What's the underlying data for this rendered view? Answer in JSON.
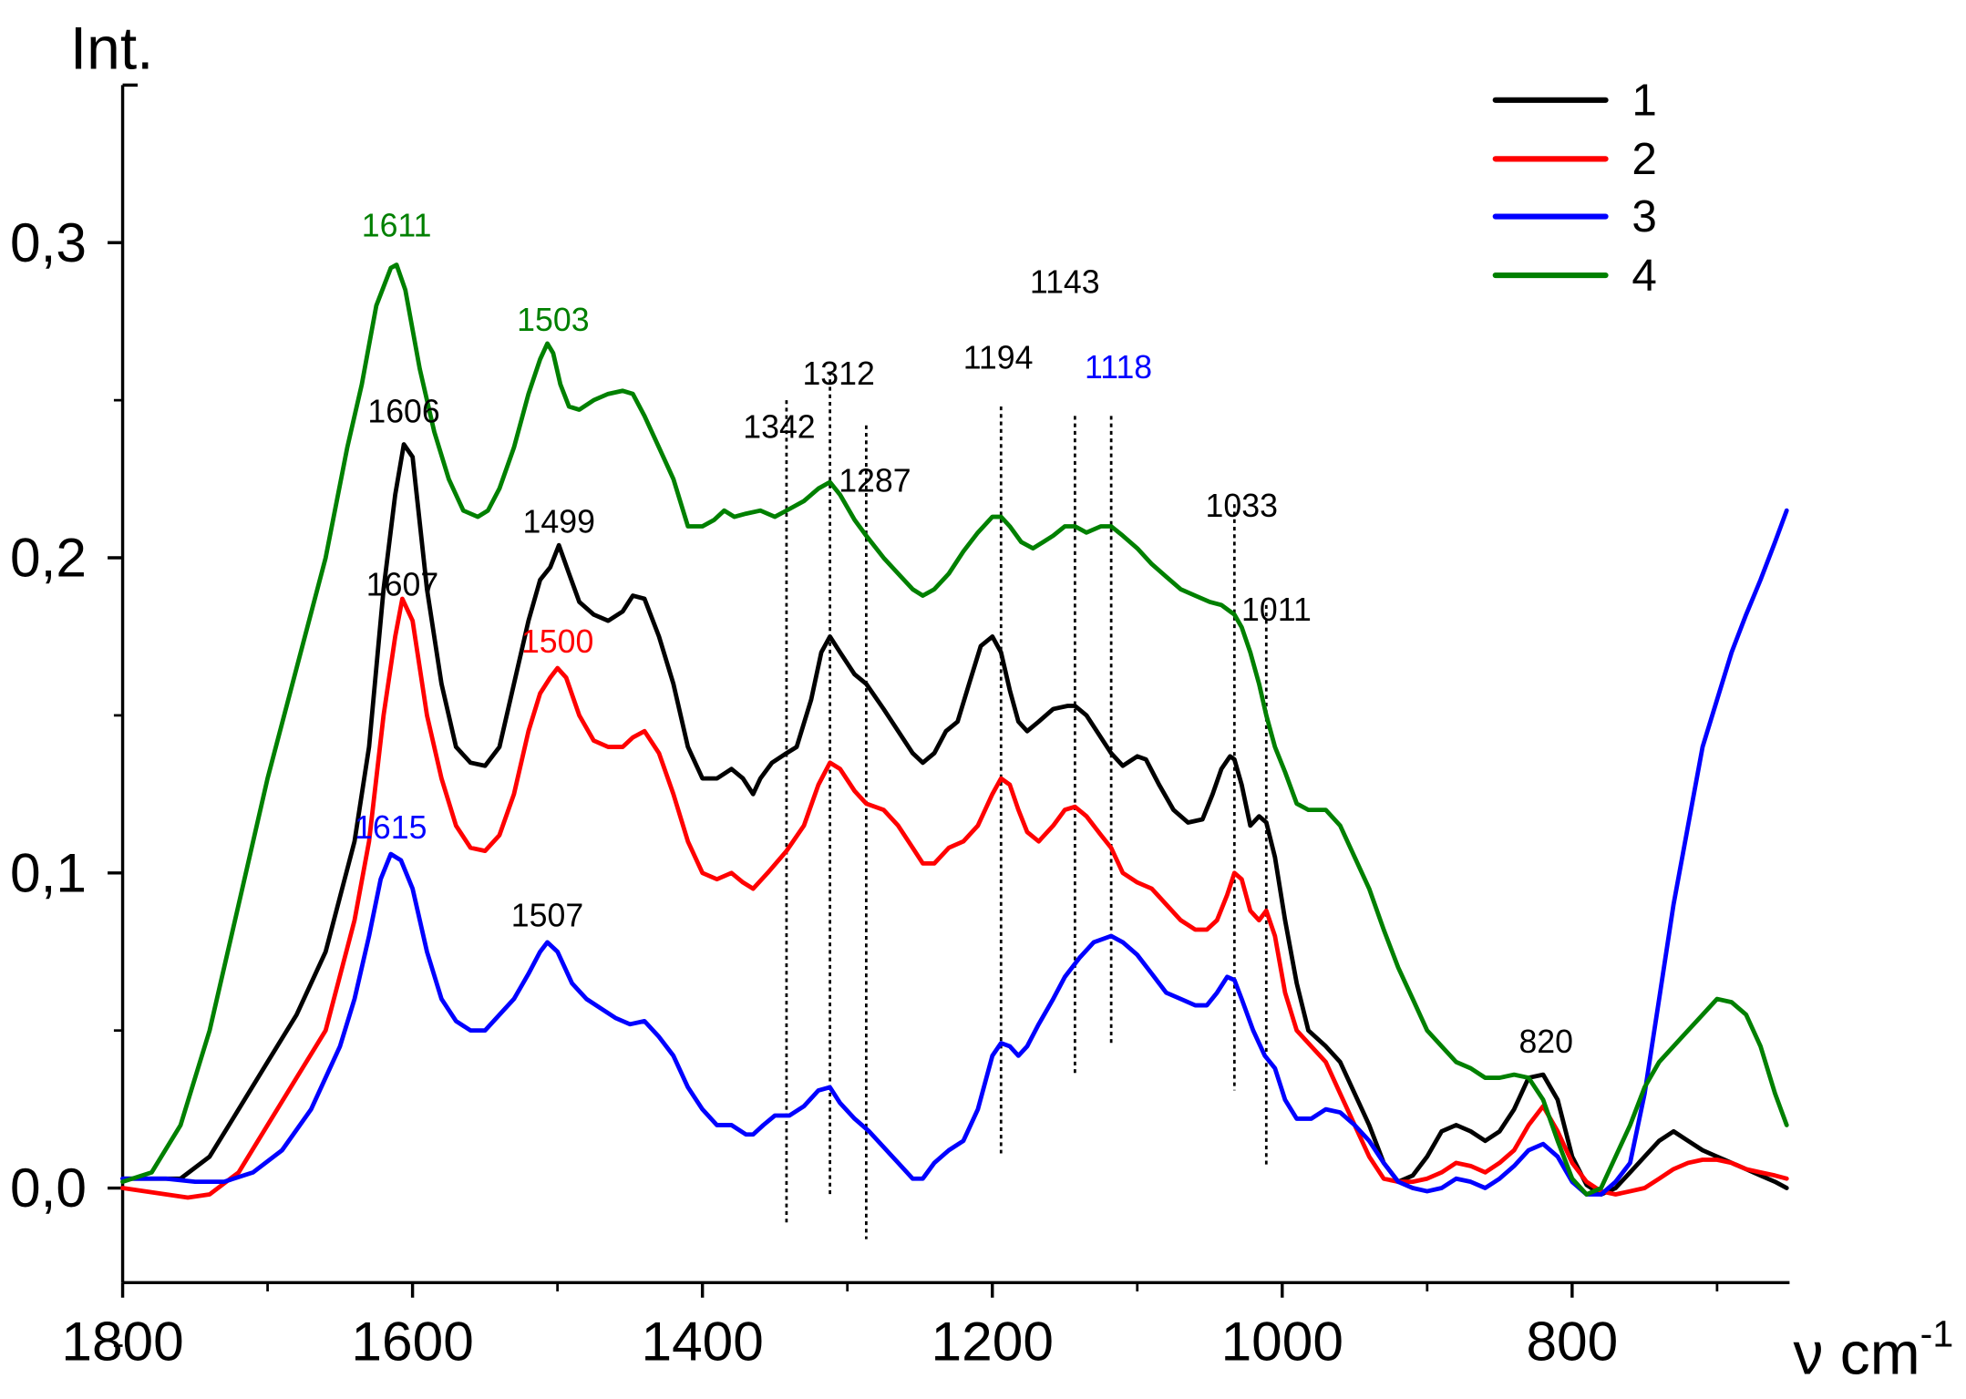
{
  "chart_data": {
    "type": "line",
    "title": "",
    "xlabel": "ν cm⁻¹",
    "xlabel_main": "ν cm",
    "xlabel_sup": "-1",
    "ylabel": "Int.",
    "xlim": [
      1800,
      650
    ],
    "ylim": [
      -0.03,
      0.35
    ],
    "x_reversed": true,
    "grid": false,
    "legend_position": "top-right",
    "x_ticks": [
      1800,
      1600,
      1400,
      1200,
      1000,
      800
    ],
    "x_tick_labels": [
      "1800",
      "1600",
      "1400",
      "1200",
      "1000",
      "800"
    ],
    "y_ticks": [
      0.0,
      0.1,
      0.2,
      0.3
    ],
    "y_tick_labels": [
      "0,0",
      "0,1",
      "0,2",
      "0,3"
    ],
    "y_minor_ticks": [
      -0.05,
      0.05,
      0.15,
      0.25
    ],
    "series": [
      {
        "name": "1",
        "color": "#000000",
        "x": [
          1800,
          1760,
          1740,
          1720,
          1700,
          1680,
          1660,
          1640,
          1630,
          1620,
          1612,
          1606,
          1600,
          1590,
          1580,
          1570,
          1560,
          1550,
          1540,
          1530,
          1520,
          1512,
          1505,
          1499,
          1492,
          1485,
          1475,
          1465,
          1455,
          1448,
          1440,
          1430,
          1420,
          1410,
          1400,
          1390,
          1380,
          1372,
          1365,
          1360,
          1352,
          1342,
          1335,
          1325,
          1318,
          1312,
          1305,
          1295,
          1287,
          1275,
          1265,
          1255,
          1248,
          1240,
          1232,
          1224,
          1216,
          1208,
          1200,
          1194,
          1188,
          1182,
          1176,
          1168,
          1158,
          1148,
          1143,
          1135,
          1128,
          1118,
          1110,
          1100,
          1094,
          1085,
          1075,
          1065,
          1055,
          1048,
          1042,
          1036,
          1033,
          1028,
          1022,
          1016,
          1011,
          1005,
          998,
          990,
          982,
          970,
          960,
          950,
          940,
          930,
          920,
          910,
          900,
          890,
          880,
          870,
          860,
          850,
          840,
          830,
          820,
          810,
          800,
          790,
          780,
          770,
          760,
          750,
          740,
          730,
          720,
          710,
          700,
          690,
          680,
          670,
          660,
          652
        ],
        "y": [
          0.003,
          0.003,
          0.01,
          0.025,
          0.04,
          0.055,
          0.075,
          0.11,
          0.14,
          0.19,
          0.22,
          0.236,
          0.232,
          0.19,
          0.16,
          0.14,
          0.135,
          0.134,
          0.14,
          0.16,
          0.18,
          0.193,
          0.197,
          0.204,
          0.195,
          0.186,
          0.182,
          0.18,
          0.183,
          0.188,
          0.187,
          0.175,
          0.16,
          0.14,
          0.13,
          0.13,
          0.133,
          0.13,
          0.125,
          0.13,
          0.135,
          0.138,
          0.14,
          0.155,
          0.17,
          0.175,
          0.17,
          0.163,
          0.16,
          0.152,
          0.145,
          0.138,
          0.135,
          0.138,
          0.145,
          0.148,
          0.16,
          0.172,
          0.175,
          0.17,
          0.158,
          0.148,
          0.145,
          0.148,
          0.152,
          0.153,
          0.153,
          0.15,
          0.145,
          0.138,
          0.134,
          0.137,
          0.136,
          0.128,
          0.12,
          0.116,
          0.117,
          0.125,
          0.133,
          0.137,
          0.136,
          0.128,
          0.115,
          0.118,
          0.116,
          0.105,
          0.085,
          0.065,
          0.05,
          0.045,
          0.04,
          0.03,
          0.02,
          0.008,
          0.002,
          0.004,
          0.01,
          0.018,
          0.02,
          0.018,
          0.015,
          0.018,
          0.025,
          0.035,
          0.036,
          0.028,
          0.01,
          0.001,
          -0.002,
          0.0,
          0.005,
          0.01,
          0.015,
          0.018,
          0.015,
          0.012,
          0.01,
          0.008,
          0.006,
          0.004,
          0.002,
          0.0
        ]
      },
      {
        "name": "2",
        "color": "#ff0000",
        "x": [
          1800,
          1770,
          1755,
          1740,
          1720,
          1700,
          1680,
          1660,
          1640,
          1630,
          1620,
          1612,
          1607,
          1600,
          1590,
          1580,
          1570,
          1560,
          1550,
          1540,
          1530,
          1520,
          1512,
          1505,
          1500,
          1494,
          1485,
          1475,
          1465,
          1455,
          1448,
          1440,
          1430,
          1420,
          1410,
          1400,
          1390,
          1380,
          1372,
          1365,
          1355,
          1342,
          1330,
          1320,
          1312,
          1305,
          1295,
          1287,
          1275,
          1265,
          1255,
          1248,
          1240,
          1230,
          1220,
          1210,
          1200,
          1194,
          1188,
          1182,
          1176,
          1168,
          1158,
          1150,
          1143,
          1135,
          1125,
          1118,
          1110,
          1100,
          1090,
          1080,
          1070,
          1060,
          1052,
          1045,
          1038,
          1033,
          1028,
          1022,
          1016,
          1011,
          1005,
          998,
          990,
          980,
          970,
          960,
          950,
          940,
          930,
          920,
          910,
          900,
          890,
          880,
          870,
          860,
          850,
          840,
          830,
          820,
          810,
          800,
          790,
          780,
          770,
          760,
          750,
          740,
          730,
          720,
          710,
          700,
          690,
          680,
          670,
          660,
          652
        ],
        "y": [
          0.0,
          -0.002,
          -0.003,
          -0.002,
          0.005,
          0.02,
          0.035,
          0.05,
          0.085,
          0.11,
          0.15,
          0.175,
          0.187,
          0.18,
          0.15,
          0.13,
          0.115,
          0.108,
          0.107,
          0.112,
          0.125,
          0.145,
          0.157,
          0.162,
          0.165,
          0.162,
          0.15,
          0.142,
          0.14,
          0.14,
          0.143,
          0.145,
          0.138,
          0.125,
          0.11,
          0.1,
          0.098,
          0.1,
          0.097,
          0.095,
          0.1,
          0.107,
          0.115,
          0.128,
          0.135,
          0.133,
          0.126,
          0.122,
          0.12,
          0.115,
          0.108,
          0.103,
          0.103,
          0.108,
          0.11,
          0.115,
          0.125,
          0.13,
          0.128,
          0.12,
          0.113,
          0.11,
          0.115,
          0.12,
          0.121,
          0.118,
          0.112,
          0.108,
          0.1,
          0.097,
          0.095,
          0.09,
          0.085,
          0.082,
          0.082,
          0.085,
          0.093,
          0.1,
          0.098,
          0.088,
          0.085,
          0.088,
          0.08,
          0.062,
          0.05,
          0.045,
          0.04,
          0.03,
          0.02,
          0.01,
          0.003,
          0.002,
          0.002,
          0.003,
          0.005,
          0.008,
          0.007,
          0.005,
          0.008,
          0.012,
          0.02,
          0.026,
          0.018,
          0.008,
          0.002,
          -0.001,
          -0.002,
          -0.001,
          0.0,
          0.003,
          0.006,
          0.008,
          0.009,
          0.009,
          0.008,
          0.006,
          0.005,
          0.004,
          0.003
        ]
      },
      {
        "name": "3",
        "color": "#0000ff",
        "x": [
          1800,
          1770,
          1750,
          1730,
          1710,
          1690,
          1670,
          1650,
          1640,
          1630,
          1622,
          1615,
          1608,
          1600,
          1590,
          1580,
          1570,
          1560,
          1550,
          1540,
          1530,
          1520,
          1512,
          1507,
          1500,
          1490,
          1480,
          1470,
          1460,
          1450,
          1440,
          1430,
          1420,
          1410,
          1400,
          1390,
          1380,
          1370,
          1365,
          1358,
          1350,
          1340,
          1330,
          1320,
          1312,
          1305,
          1295,
          1285,
          1275,
          1265,
          1255,
          1248,
          1240,
          1230,
          1220,
          1210,
          1200,
          1194,
          1188,
          1182,
          1176,
          1168,
          1158,
          1150,
          1140,
          1130,
          1118,
          1110,
          1100,
          1090,
          1080,
          1070,
          1060,
          1052,
          1045,
          1038,
          1033,
          1028,
          1020,
          1012,
          1005,
          998,
          990,
          980,
          970,
          960,
          950,
          940,
          930,
          920,
          910,
          900,
          890,
          880,
          870,
          860,
          850,
          840,
          830,
          820,
          810,
          800,
          790,
          780,
          770,
          760,
          750,
          740,
          730,
          720,
          710,
          700,
          690,
          680,
          670,
          660,
          652
        ],
        "y": [
          0.003,
          0.003,
          0.002,
          0.002,
          0.005,
          0.012,
          0.025,
          0.045,
          0.06,
          0.08,
          0.098,
          0.106,
          0.104,
          0.095,
          0.075,
          0.06,
          0.053,
          0.05,
          0.05,
          0.055,
          0.06,
          0.068,
          0.075,
          0.078,
          0.075,
          0.065,
          0.06,
          0.057,
          0.054,
          0.052,
          0.053,
          0.048,
          0.042,
          0.032,
          0.025,
          0.02,
          0.02,
          0.017,
          0.017,
          0.02,
          0.023,
          0.023,
          0.026,
          0.031,
          0.032,
          0.027,
          0.022,
          0.018,
          0.013,
          0.008,
          0.003,
          0.003,
          0.008,
          0.012,
          0.015,
          0.025,
          0.042,
          0.046,
          0.045,
          0.042,
          0.045,
          0.052,
          0.06,
          0.067,
          0.073,
          0.078,
          0.08,
          0.078,
          0.074,
          0.068,
          0.062,
          0.06,
          0.058,
          0.058,
          0.062,
          0.067,
          0.066,
          0.06,
          0.05,
          0.042,
          0.038,
          0.028,
          0.022,
          0.022,
          0.025,
          0.024,
          0.02,
          0.015,
          0.008,
          0.002,
          0.0,
          -0.001,
          0.0,
          0.003,
          0.002,
          0.0,
          0.003,
          0.007,
          0.012,
          0.014,
          0.01,
          0.002,
          -0.002,
          -0.002,
          0.002,
          0.008,
          0.03,
          0.06,
          0.09,
          0.115,
          0.14,
          0.155,
          0.17,
          0.182,
          0.193,
          0.205,
          0.215
        ]
      },
      {
        "name": "4",
        "color": "#008000",
        "x": [
          1800,
          1780,
          1760,
          1740,
          1720,
          1700,
          1680,
          1660,
          1645,
          1635,
          1625,
          1615,
          1611,
          1605,
          1595,
          1585,
          1575,
          1565,
          1555,
          1548,
          1540,
          1530,
          1520,
          1512,
          1507,
          1503,
          1498,
          1492,
          1485,
          1475,
          1465,
          1455,
          1448,
          1440,
          1430,
          1420,
          1410,
          1400,
          1392,
          1385,
          1378,
          1370,
          1360,
          1350,
          1342,
          1330,
          1320,
          1312,
          1305,
          1295,
          1287,
          1275,
          1265,
          1255,
          1248,
          1240,
          1230,
          1220,
          1210,
          1200,
          1194,
          1188,
          1180,
          1172,
          1165,
          1158,
          1150,
          1143,
          1135,
          1125,
          1118,
          1110,
          1100,
          1090,
          1080,
          1070,
          1060,
          1050,
          1042,
          1036,
          1033,
          1028,
          1022,
          1016,
          1011,
          1005,
          998,
          990,
          982,
          970,
          960,
          950,
          940,
          930,
          920,
          910,
          900,
          890,
          880,
          870,
          860,
          850,
          840,
          830,
          820,
          810,
          800,
          790,
          780,
          770,
          760,
          750,
          740,
          730,
          720,
          710,
          700,
          690,
          680,
          670,
          660,
          652
        ],
        "y": [
          0.002,
          0.005,
          0.02,
          0.05,
          0.09,
          0.13,
          0.165,
          0.2,
          0.235,
          0.255,
          0.28,
          0.292,
          0.293,
          0.285,
          0.26,
          0.24,
          0.225,
          0.215,
          0.213,
          0.215,
          0.222,
          0.235,
          0.252,
          0.263,
          0.268,
          0.265,
          0.255,
          0.248,
          0.247,
          0.25,
          0.252,
          0.253,
          0.252,
          0.245,
          0.235,
          0.225,
          0.21,
          0.21,
          0.212,
          0.215,
          0.213,
          0.214,
          0.215,
          0.213,
          0.215,
          0.218,
          0.222,
          0.224,
          0.22,
          0.212,
          0.207,
          0.2,
          0.195,
          0.19,
          0.188,
          0.19,
          0.195,
          0.202,
          0.208,
          0.213,
          0.213,
          0.21,
          0.205,
          0.203,
          0.205,
          0.207,
          0.21,
          0.21,
          0.208,
          0.21,
          0.21,
          0.207,
          0.203,
          0.198,
          0.194,
          0.19,
          0.188,
          0.186,
          0.185,
          0.183,
          0.182,
          0.178,
          0.17,
          0.16,
          0.15,
          0.14,
          0.132,
          0.122,
          0.12,
          0.12,
          0.115,
          0.105,
          0.095,
          0.082,
          0.07,
          0.06,
          0.05,
          0.045,
          0.04,
          0.038,
          0.035,
          0.035,
          0.036,
          0.035,
          0.028,
          0.015,
          0.003,
          -0.002,
          0.0,
          0.01,
          0.02,
          0.032,
          0.04,
          0.045,
          0.05,
          0.055,
          0.06,
          0.059,
          0.055,
          0.045,
          0.03,
          0.02
        ]
      }
    ],
    "reference_lines": [
      {
        "x": 1342,
        "label": "1342"
      },
      {
        "x": 1312,
        "label": "1312"
      },
      {
        "x": 1287,
        "label": "1287"
      },
      {
        "x": 1194,
        "label": "1194"
      },
      {
        "x": 1143,
        "label": "1143"
      },
      {
        "x": 1118,
        "label": "1118"
      },
      {
        "x": 1033,
        "label": "1033"
      },
      {
        "x": 1011,
        "label": "1011"
      }
    ],
    "annotations": [
      {
        "text": "1611",
        "x": 1611,
        "y": 0.302,
        "color": "#008000"
      },
      {
        "text": "1503",
        "x": 1503,
        "y": 0.272,
        "color": "#008000"
      },
      {
        "text": "1606",
        "x": 1606,
        "y": 0.243,
        "color": "#000000"
      },
      {
        "text": "1499",
        "x": 1499,
        "y": 0.208,
        "color": "#000000"
      },
      {
        "text": "1607",
        "x": 1607,
        "y": 0.188,
        "color": "#000000"
      },
      {
        "text": "1500",
        "x": 1500,
        "y": 0.17,
        "color": "#ff0000"
      },
      {
        "text": "1615",
        "x": 1615,
        "y": 0.111,
        "color": "#0000ff"
      },
      {
        "text": "1507",
        "x": 1507,
        "y": 0.083,
        "color": "#000000"
      },
      {
        "text": "1342",
        "x": 1347,
        "y": 0.238,
        "color": "#000000"
      },
      {
        "text": "1312",
        "x": 1306,
        "y": 0.255,
        "color": "#000000"
      },
      {
        "text": "1287",
        "x": 1281,
        "y": 0.221,
        "color": "#000000"
      },
      {
        "text": "1194",
        "x": 1196,
        "y": 0.26,
        "color": "#000000"
      },
      {
        "text": "1143",
        "x": 1150,
        "y": 0.284,
        "color": "#000000"
      },
      {
        "text": "1118",
        "x": 1113,
        "y": 0.257,
        "color": "#0000ff"
      },
      {
        "text": "1033",
        "x": 1028,
        "y": 0.213,
        "color": "#000000"
      },
      {
        "text": "1011",
        "x": 1004,
        "y": 0.18,
        "color": "#000000"
      },
      {
        "text": "820",
        "x": 818,
        "y": 0.043,
        "color": "#000000"
      }
    ]
  }
}
